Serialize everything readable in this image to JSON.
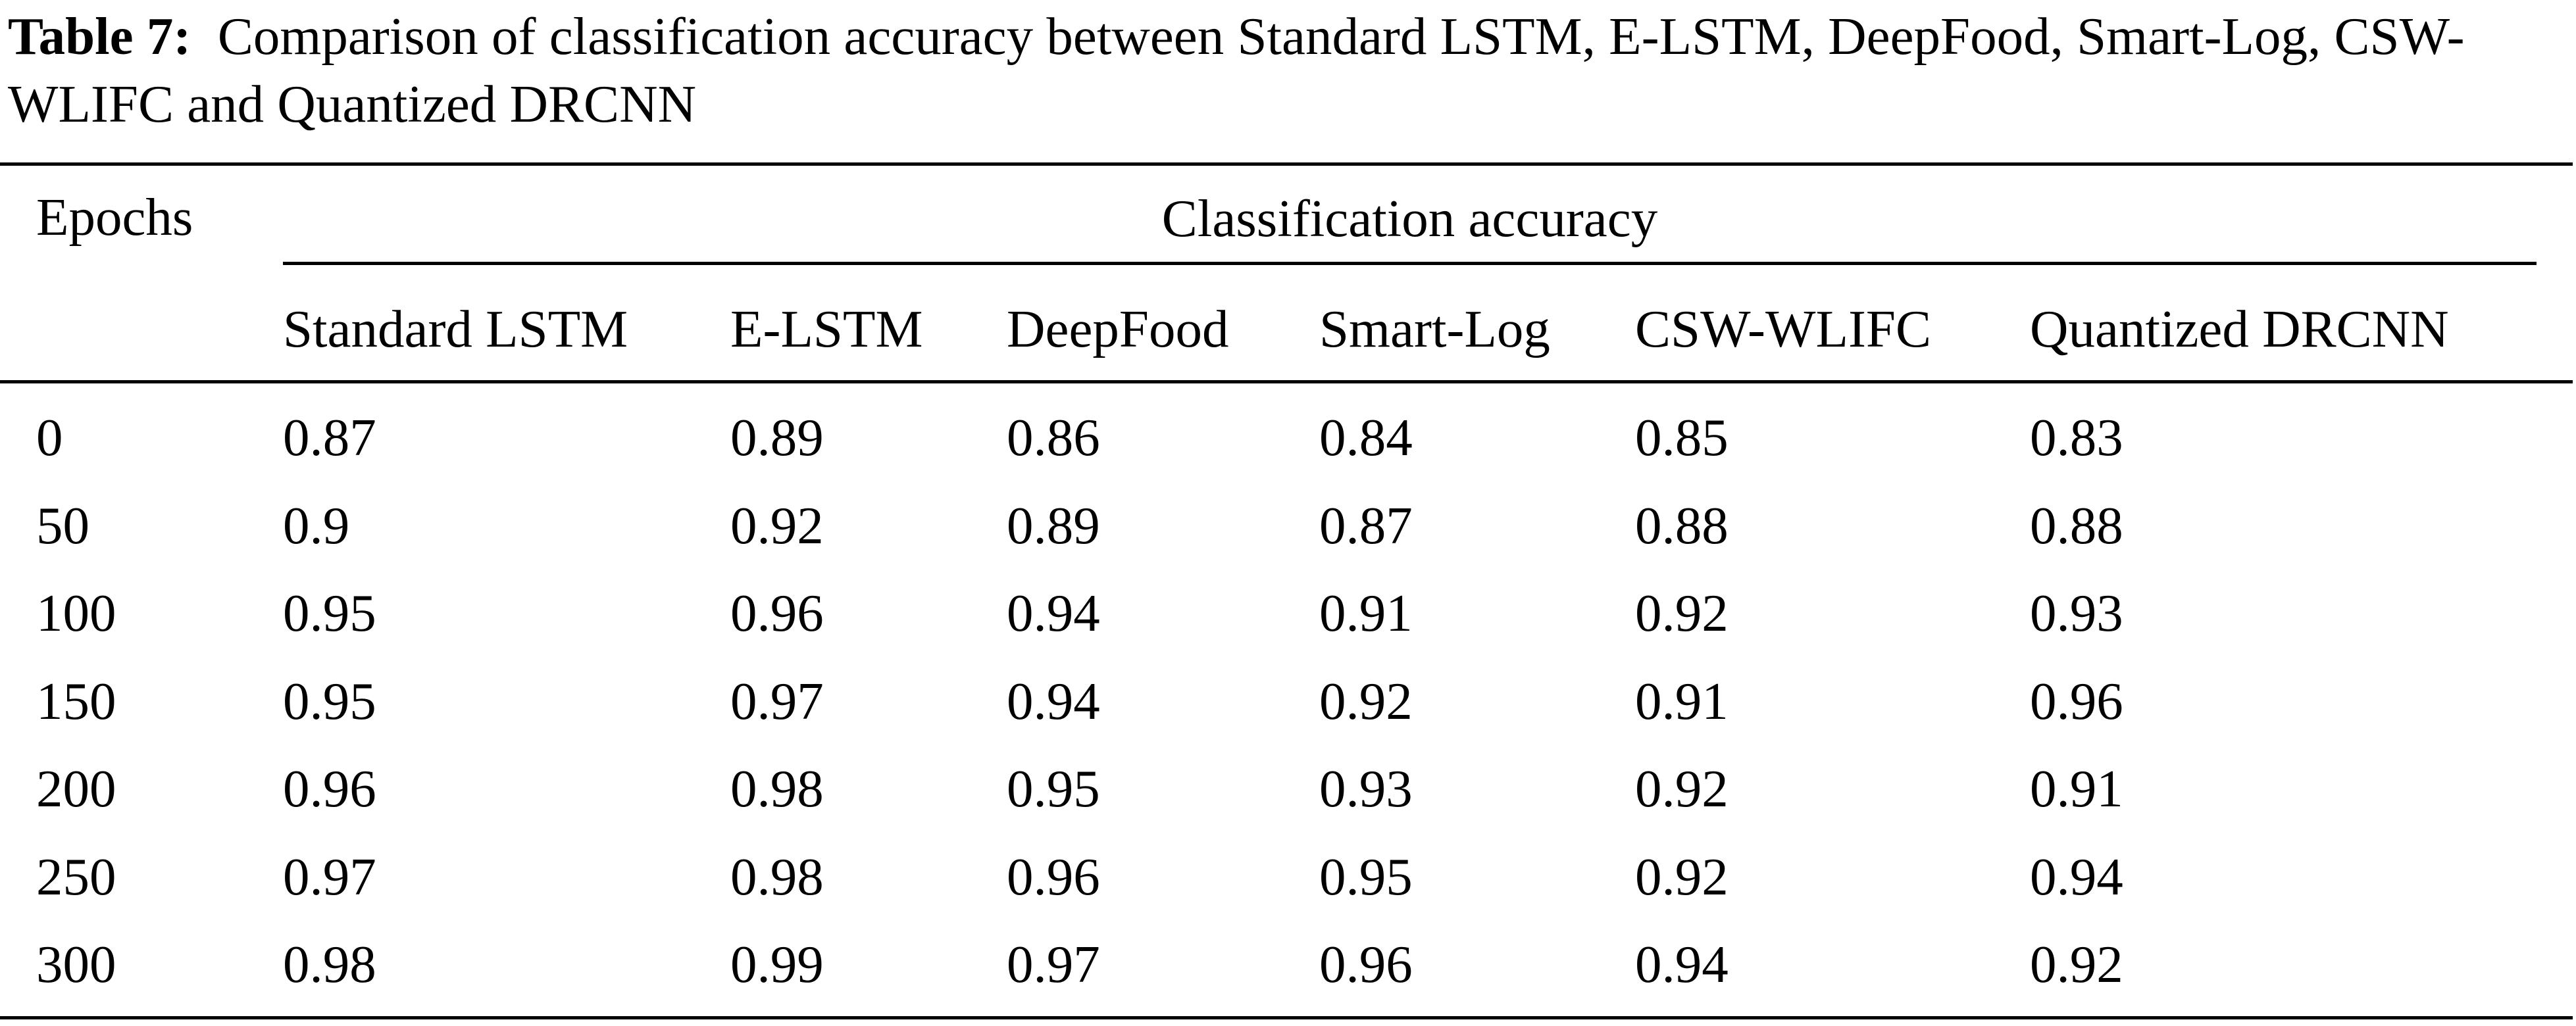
{
  "caption": {
    "label": "Table 7:",
    "text": "Comparison of classification accuracy between Standard LSTM, E-LSTM, DeepFood, Smart-Log, CSW-WLIFC and Quantized DRCNN"
  },
  "table": {
    "row_header": "Epochs",
    "group_header": "Classification accuracy",
    "columns": [
      "Standard LSTM",
      "E-LSTM",
      "DeepFood",
      "Smart-Log",
      "CSW-WLIFC",
      "Quantized DRCNN"
    ],
    "rows": [
      {
        "epoch": "0",
        "values": [
          "0.87",
          "0.89",
          "0.86",
          "0.84",
          "0.85",
          "0.83"
        ]
      },
      {
        "epoch": "50",
        "values": [
          "0.9",
          "0.92",
          "0.89",
          "0.87",
          "0.88",
          "0.88"
        ]
      },
      {
        "epoch": "100",
        "values": [
          "0.95",
          "0.96",
          "0.94",
          "0.91",
          "0.92",
          "0.93"
        ]
      },
      {
        "epoch": "150",
        "values": [
          "0.95",
          "0.97",
          "0.94",
          "0.92",
          "0.91",
          "0.96"
        ]
      },
      {
        "epoch": "200",
        "values": [
          "0.96",
          "0.98",
          "0.95",
          "0.93",
          "0.92",
          "0.91"
        ]
      },
      {
        "epoch": "250",
        "values": [
          "0.97",
          "0.98",
          "0.96",
          "0.95",
          "0.92",
          "0.94"
        ]
      },
      {
        "epoch": "300",
        "values": [
          "0.98",
          "0.99",
          "0.97",
          "0.96",
          "0.94",
          "0.92"
        ]
      }
    ]
  }
}
